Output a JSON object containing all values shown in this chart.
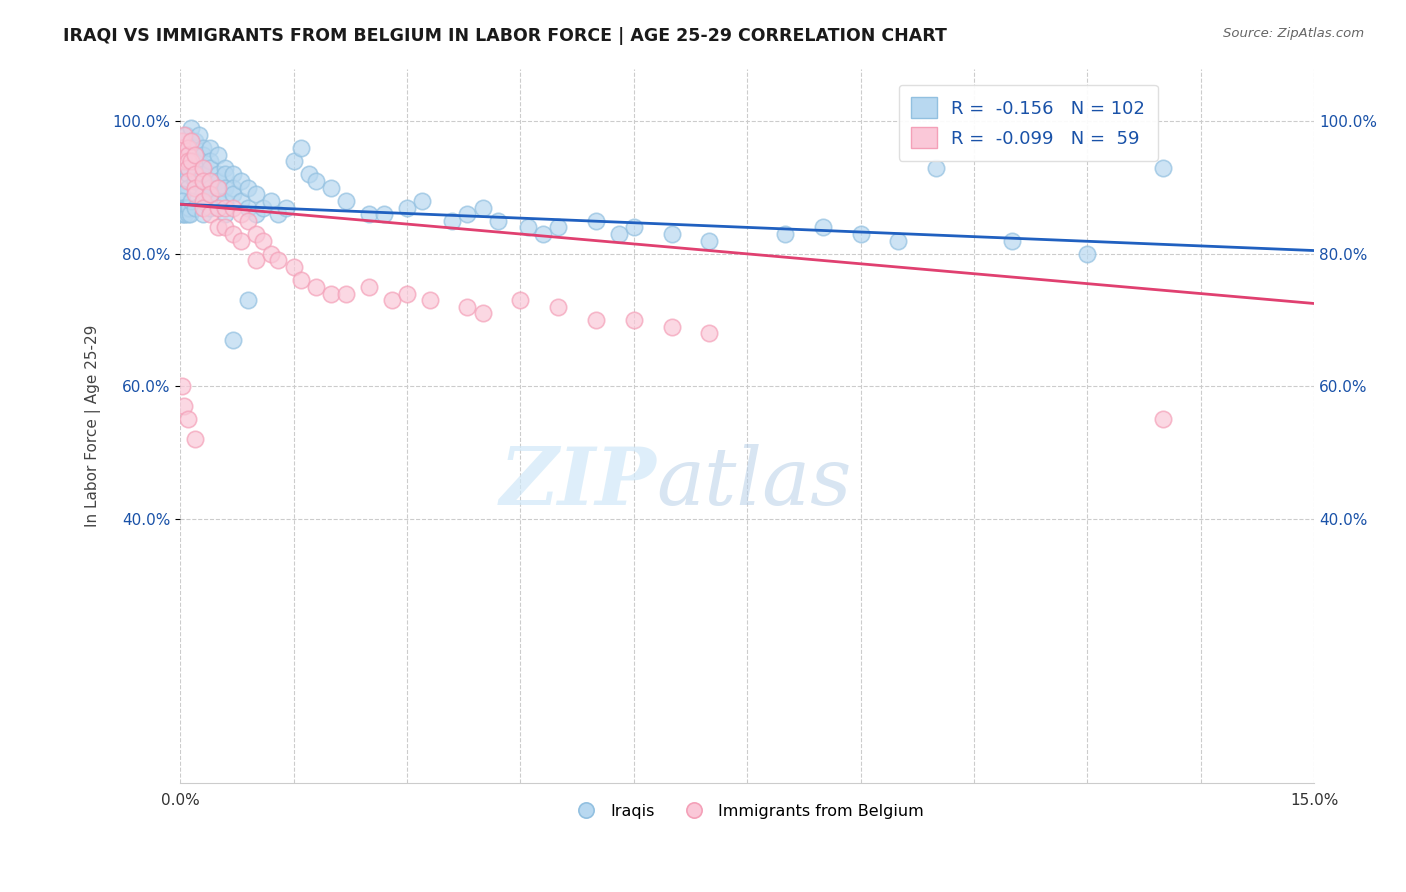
{
  "title": "IRAQI VS IMMIGRANTS FROM BELGIUM IN LABOR FORCE | AGE 25-29 CORRELATION CHART",
  "source": "Source: ZipAtlas.com",
  "ylabel": "In Labor Force | Age 25-29",
  "xlim": [
    0.0,
    0.15
  ],
  "ylim": [
    0.0,
    1.08
  ],
  "ytick_values": [
    0.4,
    0.6,
    0.8,
    1.0
  ],
  "ytick_labels": [
    "40.0%",
    "60.0%",
    "80.0%",
    "100.0%"
  ],
  "legend_blue_R": "-0.156",
  "legend_blue_N": "102",
  "legend_pink_R": "-0.099",
  "legend_pink_N": " 59",
  "blue_color": "#92c0e0",
  "pink_color": "#f4a0b8",
  "blue_fill": "#b8d8f0",
  "pink_fill": "#fac8d8",
  "trendline_blue_color": "#2060c0",
  "trendline_pink_color": "#e04070",
  "watermark_zip": "ZIP",
  "watermark_atlas": "atlas",
  "blue_trend_x": [
    0.0,
    0.15
  ],
  "blue_trend_y": [
    0.875,
    0.805
  ],
  "pink_trend_x": [
    0.0,
    0.15
  ],
  "pink_trend_y": [
    0.875,
    0.725
  ],
  "blue_x": [
    0.0005,
    0.0005,
    0.0008,
    0.001,
    0.001,
    0.001,
    0.001,
    0.001,
    0.0015,
    0.0015,
    0.002,
    0.002,
    0.002,
    0.002,
    0.002,
    0.002,
    0.0025,
    0.0025,
    0.003,
    0.003,
    0.003,
    0.003,
    0.003,
    0.003,
    0.004,
    0.004,
    0.004,
    0.004,
    0.004,
    0.004,
    0.005,
    0.005,
    0.005,
    0.005,
    0.005,
    0.006,
    0.006,
    0.006,
    0.006,
    0.007,
    0.007,
    0.007,
    0.008,
    0.008,
    0.009,
    0.009,
    0.01,
    0.01,
    0.011,
    0.012,
    0.013,
    0.014,
    0.015,
    0.016,
    0.017,
    0.018,
    0.02,
    0.022,
    0.025,
    0.027,
    0.03,
    0.032,
    0.036,
    0.038,
    0.04,
    0.042,
    0.046,
    0.048,
    0.05,
    0.055,
    0.058,
    0.06,
    0.065,
    0.07,
    0.08,
    0.085,
    0.09,
    0.095,
    0.1,
    0.11,
    0.12,
    0.13,
    0.0003,
    0.0003,
    0.0003,
    0.0003,
    0.0005,
    0.0005,
    0.0007,
    0.0007,
    0.0009,
    0.001,
    0.001,
    0.0012,
    0.0013,
    0.0015,
    0.002,
    0.003,
    0.004,
    0.006,
    0.007,
    0.009
  ],
  "blue_y": [
    0.91,
    0.97,
    0.98,
    0.96,
    0.95,
    0.93,
    0.92,
    0.9,
    0.99,
    0.97,
    0.97,
    0.96,
    0.95,
    0.94,
    0.93,
    0.91,
    0.98,
    0.94,
    0.96,
    0.95,
    0.93,
    0.92,
    0.9,
    0.89,
    0.96,
    0.94,
    0.93,
    0.91,
    0.9,
    0.89,
    0.95,
    0.92,
    0.91,
    0.9,
    0.88,
    0.93,
    0.92,
    0.9,
    0.88,
    0.92,
    0.9,
    0.89,
    0.91,
    0.88,
    0.9,
    0.87,
    0.89,
    0.86,
    0.87,
    0.88,
    0.86,
    0.87,
    0.94,
    0.96,
    0.92,
    0.91,
    0.9,
    0.88,
    0.86,
    0.86,
    0.87,
    0.88,
    0.85,
    0.86,
    0.87,
    0.85,
    0.84,
    0.83,
    0.84,
    0.85,
    0.83,
    0.84,
    0.83,
    0.82,
    0.83,
    0.84,
    0.83,
    0.82,
    0.93,
    0.82,
    0.8,
    0.93,
    0.89,
    0.88,
    0.87,
    0.86,
    0.87,
    0.86,
    0.87,
    0.86,
    0.87,
    0.87,
    0.86,
    0.87,
    0.86,
    0.88,
    0.87,
    0.86,
    0.87,
    0.86,
    0.67,
    0.73
  ],
  "pink_x": [
    0.0003,
    0.0003,
    0.0005,
    0.0005,
    0.001,
    0.001,
    0.001,
    0.001,
    0.001,
    0.0015,
    0.0015,
    0.002,
    0.002,
    0.002,
    0.002,
    0.003,
    0.003,
    0.003,
    0.003,
    0.004,
    0.004,
    0.004,
    0.005,
    0.005,
    0.005,
    0.006,
    0.006,
    0.007,
    0.007,
    0.008,
    0.008,
    0.009,
    0.01,
    0.01,
    0.011,
    0.012,
    0.013,
    0.015,
    0.016,
    0.018,
    0.02,
    0.022,
    0.025,
    0.028,
    0.03,
    0.033,
    0.038,
    0.04,
    0.045,
    0.05,
    0.055,
    0.06,
    0.065,
    0.07,
    0.0003,
    0.0005,
    0.001,
    0.002,
    0.13
  ],
  "pink_y": [
    0.97,
    0.96,
    0.98,
    0.94,
    0.96,
    0.95,
    0.94,
    0.93,
    0.91,
    0.97,
    0.94,
    0.95,
    0.92,
    0.9,
    0.89,
    0.93,
    0.91,
    0.88,
    0.87,
    0.91,
    0.89,
    0.86,
    0.9,
    0.87,
    0.84,
    0.87,
    0.84,
    0.87,
    0.83,
    0.86,
    0.82,
    0.85,
    0.83,
    0.79,
    0.82,
    0.8,
    0.79,
    0.78,
    0.76,
    0.75,
    0.74,
    0.74,
    0.75,
    0.73,
    0.74,
    0.73,
    0.72,
    0.71,
    0.73,
    0.72,
    0.7,
    0.7,
    0.69,
    0.68,
    0.6,
    0.57,
    0.55,
    0.52,
    0.55
  ]
}
